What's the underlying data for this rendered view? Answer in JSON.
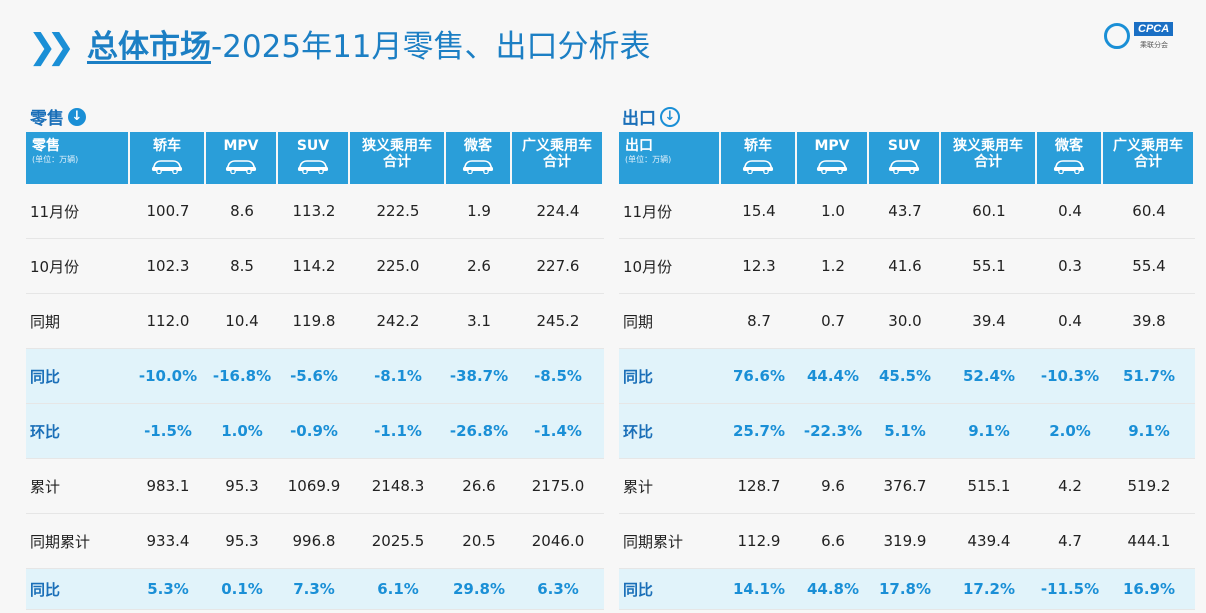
{
  "title": {
    "main": "总体市场",
    "rest": "-2025年11月零售、出口分析表"
  },
  "logo": {
    "text": "CPCA",
    "subtext": "乘联分会"
  },
  "unit_label": "(单位：万辆)",
  "retail": {
    "label": "零售",
    "header_first": "零售",
    "columns": [
      "轿车",
      "MPV",
      "SUV",
      "狭义乘用车\n合计",
      "微客",
      "广义乘用车\n合计"
    ],
    "rows": [
      {
        "label": "11月份",
        "values": [
          "100.7",
          "8.6",
          "113.2",
          "222.5",
          "1.9",
          "224.4"
        ],
        "highlight": false
      },
      {
        "label": "10月份",
        "values": [
          "102.3",
          "8.5",
          "114.2",
          "225.0",
          "2.6",
          "227.6"
        ],
        "highlight": false
      },
      {
        "label": "同期",
        "values": [
          "112.0",
          "10.4",
          "119.8",
          "242.2",
          "3.1",
          "245.2"
        ],
        "highlight": false
      },
      {
        "label": "同比",
        "values": [
          "-10.0%",
          "-16.8%",
          "-5.6%",
          "-8.1%",
          "-38.7%",
          "-8.5%"
        ],
        "highlight": true
      },
      {
        "label": "环比",
        "values": [
          "-1.5%",
          "1.0%",
          "-0.9%",
          "-1.1%",
          "-26.8%",
          "-1.4%"
        ],
        "highlight": true
      },
      {
        "label": "累计",
        "values": [
          "983.1",
          "95.3",
          "1069.9",
          "2148.3",
          "26.6",
          "2175.0"
        ],
        "highlight": false
      },
      {
        "label": "同期累计",
        "values": [
          "933.4",
          "95.3",
          "996.8",
          "2025.5",
          "20.5",
          "2046.0"
        ],
        "highlight": false
      },
      {
        "label": "同比",
        "values": [
          "5.3%",
          "0.1%",
          "7.3%",
          "6.1%",
          "29.8%",
          "6.3%"
        ],
        "highlight": true
      }
    ]
  },
  "export": {
    "label": "出口",
    "header_first": "出口",
    "columns": [
      "轿车",
      "MPV",
      "SUV",
      "狭义乘用车\n合计",
      "微客",
      "广义乘用车\n合计"
    ],
    "rows": [
      {
        "label": "11月份",
        "values": [
          "15.4",
          "1.0",
          "43.7",
          "60.1",
          "0.4",
          "60.4"
        ],
        "highlight": false
      },
      {
        "label": "10月份",
        "values": [
          "12.3",
          "1.2",
          "41.6",
          "55.1",
          "0.3",
          "55.4"
        ],
        "highlight": false
      },
      {
        "label": "同期",
        "values": [
          "8.7",
          "0.7",
          "30.0",
          "39.4",
          "0.4",
          "39.8"
        ],
        "highlight": false
      },
      {
        "label": "同比",
        "values": [
          "76.6%",
          "44.4%",
          "45.5%",
          "52.4%",
          "-10.3%",
          "51.7%"
        ],
        "highlight": true
      },
      {
        "label": "环比",
        "values": [
          "25.7%",
          "-22.3%",
          "5.1%",
          "9.1%",
          "2.0%",
          "9.1%"
        ],
        "highlight": true
      },
      {
        "label": "累计",
        "values": [
          "128.7",
          "9.6",
          "376.7",
          "515.1",
          "4.2",
          "519.2"
        ],
        "highlight": false
      },
      {
        "label": "同期累计",
        "values": [
          "112.9",
          "6.6",
          "319.9",
          "439.4",
          "4.7",
          "444.1"
        ],
        "highlight": false
      },
      {
        "label": "同比",
        "values": [
          "14.1%",
          "44.8%",
          "17.8%",
          "17.2%",
          "-11.5%",
          "16.9%"
        ],
        "highlight": true
      }
    ]
  },
  "colors": {
    "accent": "#2a9ed9",
    "highlight_bg": "#e1f3fa",
    "title": "#1c7fc4"
  }
}
